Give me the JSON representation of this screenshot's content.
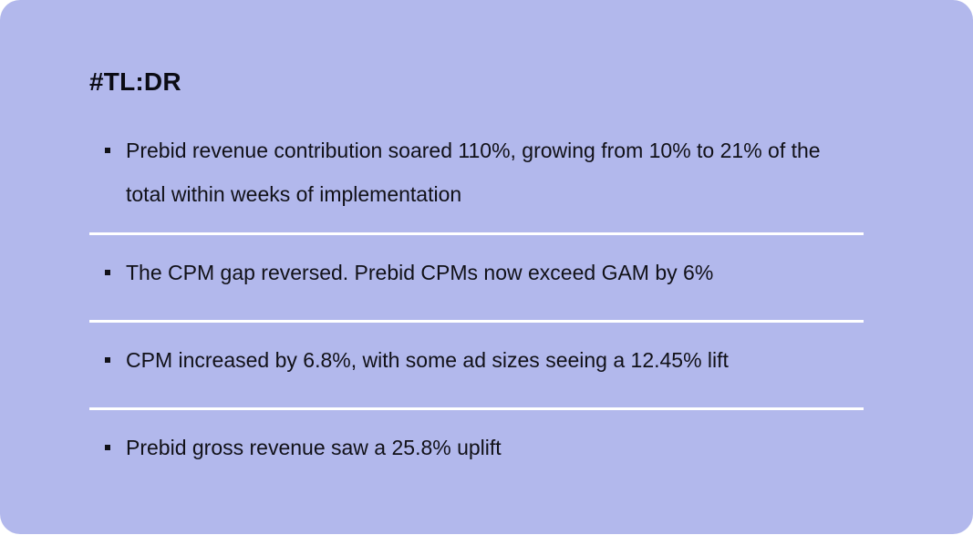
{
  "card": {
    "title": "#TL:DR",
    "background": "#b2b8ec",
    "items": [
      {
        "text": "Prebid revenue contribution soared 110%,  growing from 10% to 21% of the total within weeks of implementation"
      },
      {
        "text": "The CPM gap reversed. Prebid CPMs now exceed GAM by 6%"
      },
      {
        "text": "CPM increased by 6.8%, with some ad sizes seeing a 12.45% lift"
      },
      {
        "text": "Prebid gross revenue saw a 25.8% uplift"
      }
    ]
  }
}
